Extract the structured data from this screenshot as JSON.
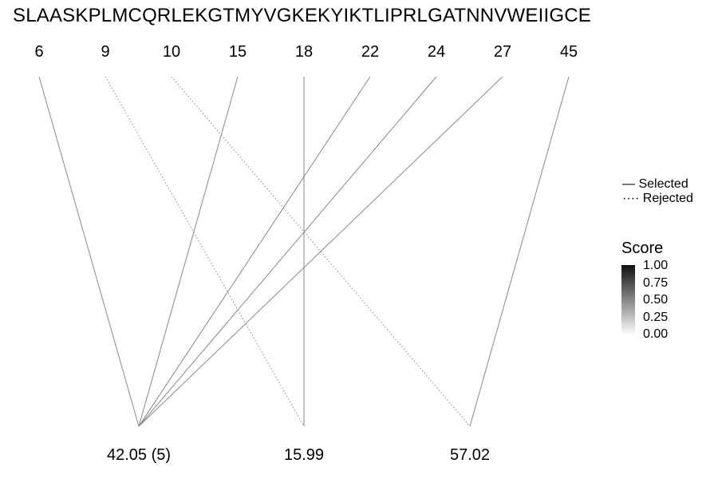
{
  "sequence": "SLAASKPLMCQRLEKGTMYVGKEKYIKTLIPRLGATNNVWEIIGCE",
  "positions": [
    "6",
    "9",
    "10",
    "15",
    "18",
    "22",
    "24",
    "27",
    "45"
  ],
  "targets": [
    "42.05 (5)",
    "15.99",
    "57.02"
  ],
  "links": [
    {
      "from": "6",
      "to": "42.05 (5)",
      "status": "Selected"
    },
    {
      "from": "9",
      "to": "15.99",
      "status": "Rejected"
    },
    {
      "from": "10",
      "to": "57.02",
      "status": "Rejected"
    },
    {
      "from": "15",
      "to": "42.05 (5)",
      "status": "Selected"
    },
    {
      "from": "18",
      "to": "15.99",
      "status": "Selected"
    },
    {
      "from": "22",
      "to": "42.05 (5)",
      "status": "Selected"
    },
    {
      "from": "24",
      "to": "42.05 (5)",
      "status": "Selected"
    },
    {
      "from": "27",
      "to": "42.05 (5)",
      "status": "Selected"
    },
    {
      "from": "45",
      "to": "57.02",
      "status": "Selected"
    }
  ],
  "legend": {
    "line_types": [
      "Selected",
      "Rejected"
    ],
    "score_title": "Score",
    "score_ticks": [
      "1.00",
      "0.75",
      "0.50",
      "0.25",
      "0.00"
    ]
  },
  "colors": {
    "line": "#888888",
    "text": "#000000",
    "score_high": "#101010",
    "score_low": "#ffffff"
  }
}
